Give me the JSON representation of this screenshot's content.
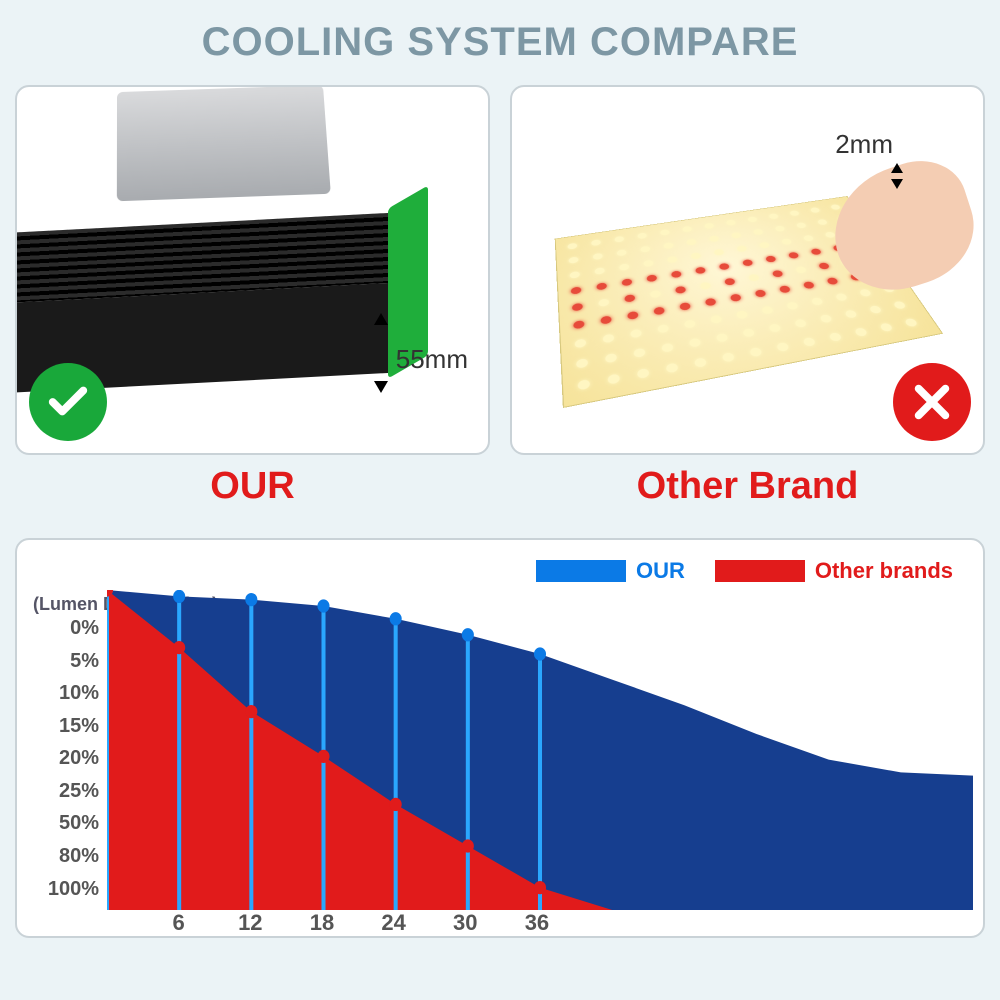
{
  "title": "COOLING SYSTEM COMPARE",
  "left": {
    "brand_label": "OUR",
    "thickness_label": "55mm",
    "badge_color": "#19a83a"
  },
  "right": {
    "brand_label": "Other Brand",
    "thickness_label": "2mm",
    "badge_color": "#e11b1b"
  },
  "chart": {
    "type": "area",
    "y_axis_title": "(Lumen Depreciation)",
    "legend": [
      {
        "label": "OUR",
        "color": "#0b7ae6"
      },
      {
        "label": "Other brands",
        "color": "#e11b1b"
      }
    ],
    "y_ticks": [
      "0%",
      "5%",
      "10%",
      "15%",
      "20%",
      "25%",
      "50%",
      "80%",
      "100%"
    ],
    "x_ticks": [
      "6",
      "12",
      "18",
      "24",
      "30",
      "36"
    ],
    "background_color": "#ffffff",
    "series": {
      "our": {
        "color": "#163e8f",
        "fill": "#163e8f",
        "points_blue_y": [
          0.0,
          0.02,
          0.03,
          0.05,
          0.09,
          0.14,
          0.2,
          0.28,
          0.36,
          0.45,
          0.53,
          0.57,
          0.58
        ]
      },
      "other": {
        "color": "#e11b1b",
        "fill": "#e11b1b",
        "points_red_y": [
          0.0,
          0.18,
          0.38,
          0.52,
          0.67,
          0.8,
          0.93,
          1.0,
          1.0,
          1.0,
          1.0,
          1.0,
          1.0
        ]
      }
    },
    "markers": {
      "x_indices": [
        0,
        1,
        2,
        3,
        4,
        5,
        6
      ],
      "blue_marker_y": [
        0.0,
        0.02,
        0.03,
        0.05,
        0.09,
        0.14,
        0.2
      ],
      "red_marker_y": [
        0.0,
        0.18,
        0.38,
        0.52,
        0.67,
        0.8,
        0.93
      ],
      "marker_radius": 6,
      "stem_color": "#2aa7ff"
    },
    "plot_width_units": 12,
    "x_tick_positions": [
      1,
      2,
      3,
      4,
      5,
      6
    ]
  },
  "colors": {
    "page_bg": "#ebf3f6",
    "panel_border": "#c9d2d7",
    "title_color": "#7d97a4",
    "brand_red": "#e11b1b"
  }
}
